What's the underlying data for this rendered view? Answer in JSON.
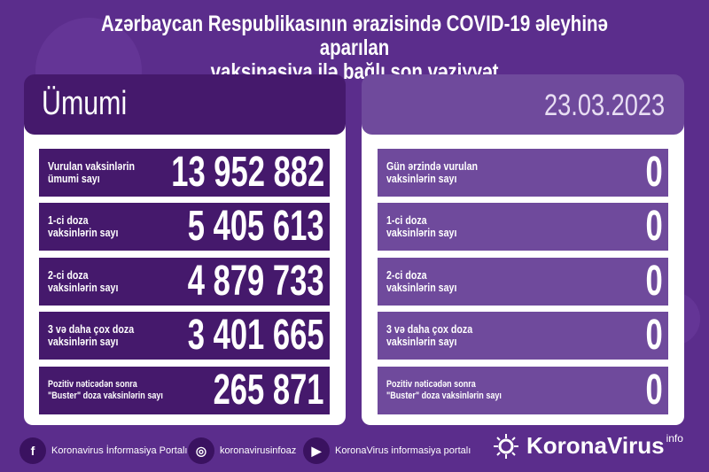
{
  "title": {
    "line1": "Azərbaycan Respublikasının ərazisində COVID-19 əleyhinə aparılan",
    "line2": "vaksinasiya ilə bağlı son vəziyyət"
  },
  "left": {
    "header": "Ümumi",
    "rows": [
      {
        "label": "Vurulan vaksinlərin\nümumi sayı",
        "value": "13 952 882"
      },
      {
        "label": "1-ci doza\nvaksinlərin sayı",
        "value": "5 405 613"
      },
      {
        "label": "2-ci doza\nvaksinlərin sayı",
        "value": "4 879 733"
      },
      {
        "label": "3 və daha çox doza\nvaksinlərin sayı",
        "value": "3 401 665"
      },
      {
        "label": "Pozitiv nəticədən sonra\n\"Buster\" doza vaksinlərin sayı",
        "value": "265 871"
      }
    ]
  },
  "right": {
    "header": "23.03.2023",
    "rows": [
      {
        "label": "Gün ərzində vurulan\nvaksinlərin sayı",
        "value": "0"
      },
      {
        "label": "1-ci doza\nvaksinlərin sayı",
        "value": "0"
      },
      {
        "label": "2-ci doza\nvaksinlərin sayı",
        "value": "0"
      },
      {
        "label": "3 və daha çox doza\nvaksinlərin sayı",
        "value": "0"
      },
      {
        "label": "Pozitiv nəticədən sonra\n\"Buster\" doza vaksinlərin sayı",
        "value": "0"
      }
    ]
  },
  "footer": {
    "facebook": "Koronavirus İnformasiya Portalı",
    "instagram": "koronavirusinfoaz",
    "youtube": "KoronaVirus informasiya portalı"
  },
  "logo": {
    "name": "KoronaVirus",
    "sup": "info"
  },
  "colors": {
    "background": "#5b2d8c",
    "dark_row": "#45196c",
    "light_row": "#6f4a9c"
  }
}
